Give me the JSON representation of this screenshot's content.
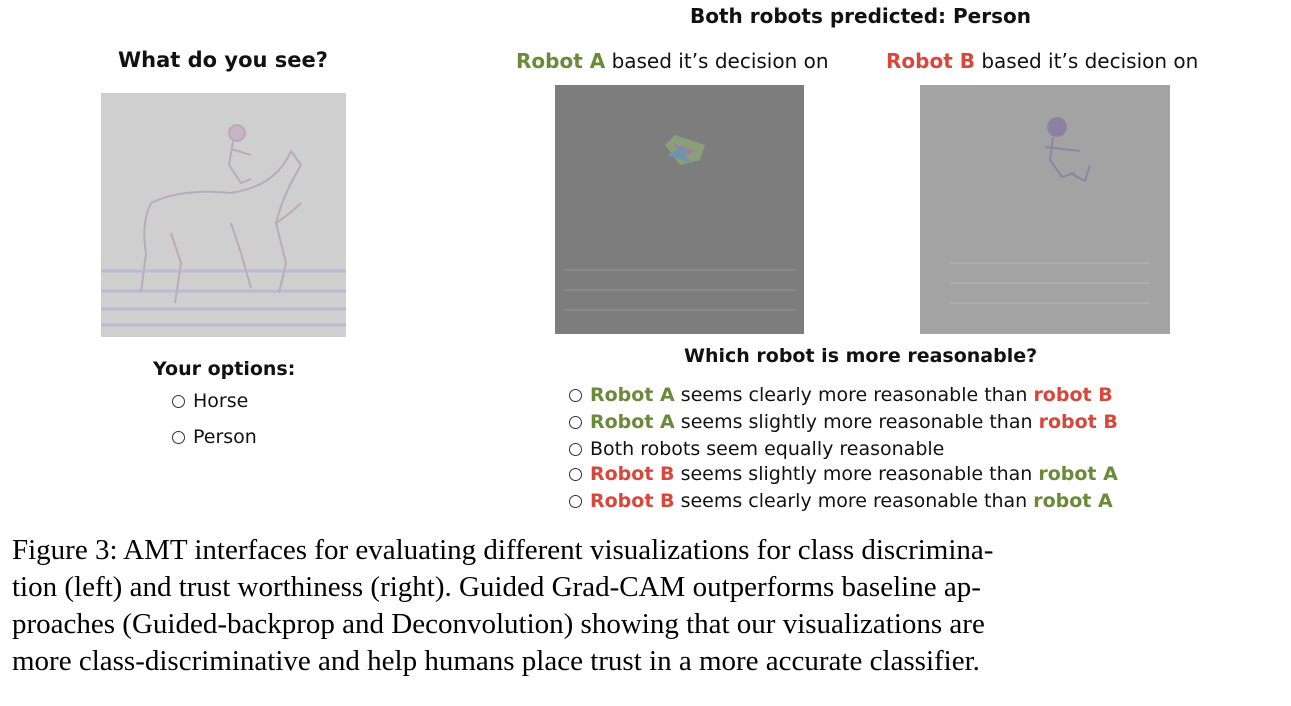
{
  "left": {
    "question": "What do you see?",
    "options_title": "Your options:",
    "options": [
      "Horse",
      "Person"
    ]
  },
  "right": {
    "title": "Both robots predicted: Person",
    "robot_a_label": "Robot A",
    "robot_b_label": "Robot B",
    "caption_suffix": "based it’s decision on",
    "question": "Which robot is more reasonable?",
    "options": [
      {
        "first": "Robot A",
        "middle": "seems clearly more reasonable than",
        "last": "robot B",
        "first_color": "green",
        "last_color": "red"
      },
      {
        "first": "Robot A",
        "middle": "seems slightly more reasonable than",
        "last": "robot B",
        "first_color": "green",
        "last_color": "red"
      },
      {
        "first": "",
        "middle": "Both robots seem equally reasonable",
        "last": "",
        "first_color": "",
        "last_color": ""
      },
      {
        "first": "Robot B",
        "middle": "seems slightly more reasonable than",
        "last": "robot A",
        "first_color": "red",
        "last_color": "green"
      },
      {
        "first": "Robot B",
        "middle": "seems clearly more reasonable than",
        "last": "robot A",
        "first_color": "red",
        "last_color": "green"
      }
    ]
  },
  "caption": {
    "lines": [
      "Figure 3: AMT interfaces for evaluating different visualizations for class discrimina-",
      "tion (left) and trust worthiness (right).  Guided Grad-CAM outperforms baseline ap-",
      "proaches (Guided-backprop and Deconvolution) showing that our visualizations are",
      "more class-discriminative and help humans place trust in a more accurate classifier."
    ]
  },
  "colors": {
    "green": "#6a8a3a",
    "red": "#d8473a"
  }
}
